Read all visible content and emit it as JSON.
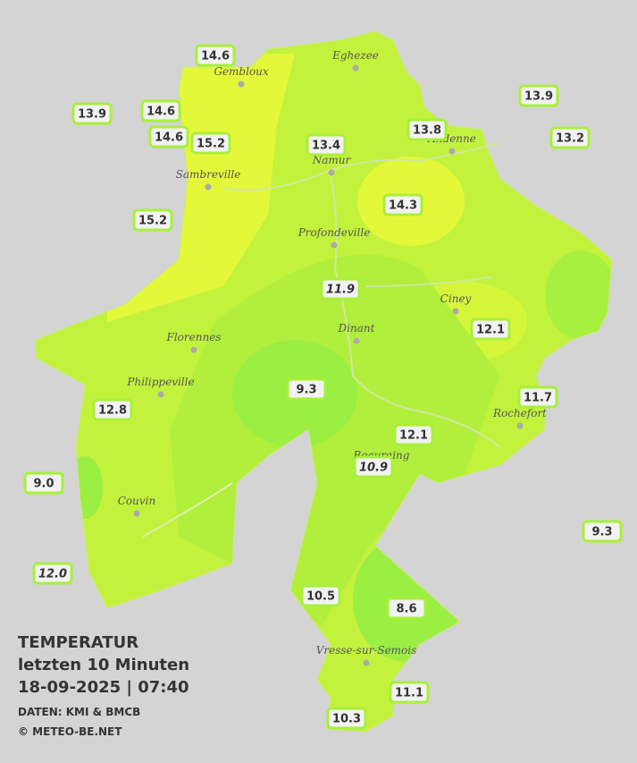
{
  "legend": {
    "title": "TEMPERATUR",
    "subtitle": "letzten 10 Minuten",
    "timestamp": "18-09-2025  |  07:40",
    "source": "DATEN: KMI & BMCB",
    "copyright": "© METEO-BE.NET"
  },
  "cities": [
    "Eghezee",
    "Gembloux",
    "Andenne",
    "Namur",
    "Sambreville",
    "Profondeville",
    "Ciney",
    "Dinant",
    "Florennes",
    "Philippeville",
    "Rochefort",
    "Beauraing",
    "Couvin",
    "Vresse-sur-Semois"
  ],
  "stations": [
    {
      "value": "14.6"
    },
    {
      "value": "13.9"
    },
    {
      "value": "14.6"
    },
    {
      "value": "14.6"
    },
    {
      "value": "15.2"
    },
    {
      "value": "13.4"
    },
    {
      "value": "13.8"
    },
    {
      "value": "13.9"
    },
    {
      "value": "13.2"
    },
    {
      "value": "15.2"
    },
    {
      "value": "14.3"
    },
    {
      "value": "11.9",
      "italic": true
    },
    {
      "value": "12.1"
    },
    {
      "value": "9.3"
    },
    {
      "value": "12.8"
    },
    {
      "value": "11.7"
    },
    {
      "value": "12.1"
    },
    {
      "value": "10.9",
      "italic": true
    },
    {
      "value": "9.0"
    },
    {
      "value": "9.3"
    },
    {
      "value": "12.0",
      "italic": true
    },
    {
      "value": "10.5"
    },
    {
      "value": "8.6"
    },
    {
      "value": "11.1"
    },
    {
      "value": "10.3"
    }
  ]
}
